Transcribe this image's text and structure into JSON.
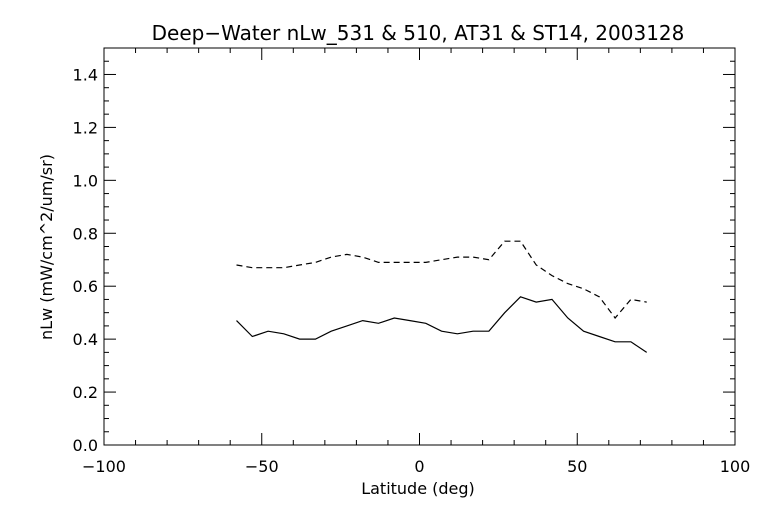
{
  "chart_data": {
    "type": "line",
    "title": "Deep−Water nLw_531 & 510, AT31 & ST14, 2003128",
    "xlabel": "Latitude (deg)",
    "ylabel": "nLw (mW/cm^2/um/sr)",
    "xlim": [
      -100,
      100
    ],
    "ylim": [
      0.0,
      1.5
    ],
    "xticks": [
      -100,
      -50,
      0,
      50,
      100
    ],
    "xtick_labels": [
      "−100",
      "−50",
      "0",
      "50",
      "100"
    ],
    "yticks": [
      0.0,
      0.2,
      0.4,
      0.6,
      0.8,
      1.0,
      1.2,
      1.4
    ],
    "ytick_labels": [
      "0.0",
      "0.2",
      "0.4",
      "0.6",
      "0.8",
      "1.0",
      "1.2",
      "1.4"
    ],
    "grid": false,
    "series": [
      {
        "style": "solid",
        "x": [
          -58,
          -53,
          -48,
          -43,
          -38,
          -33,
          -28,
          -23,
          -18,
          -13,
          -8,
          -3,
          2,
          7,
          12,
          17,
          22,
          27,
          32,
          37,
          42,
          47,
          52,
          57,
          62,
          67,
          72
        ],
        "y": [
          0.47,
          0.41,
          0.43,
          0.42,
          0.4,
          0.4,
          0.43,
          0.45,
          0.47,
          0.46,
          0.48,
          0.47,
          0.46,
          0.43,
          0.42,
          0.43,
          0.43,
          0.5,
          0.56,
          0.54,
          0.55,
          0.48,
          0.43,
          0.41,
          0.39,
          0.39,
          0.35
        ]
      },
      {
        "style": "dashed",
        "x": [
          -58,
          -53,
          -48,
          -43,
          -38,
          -33,
          -28,
          -23,
          -18,
          -13,
          -8,
          -3,
          2,
          7,
          12,
          17,
          22,
          27,
          32,
          37,
          42,
          47,
          52,
          57,
          62,
          67,
          72
        ],
        "y": [
          0.68,
          0.67,
          0.67,
          0.67,
          0.68,
          0.69,
          0.71,
          0.72,
          0.71,
          0.69,
          0.69,
          0.69,
          0.69,
          0.7,
          0.71,
          0.71,
          0.7,
          0.77,
          0.77,
          0.68,
          0.64,
          0.61,
          0.59,
          0.56,
          0.48,
          0.55,
          0.54
        ]
      }
    ]
  }
}
